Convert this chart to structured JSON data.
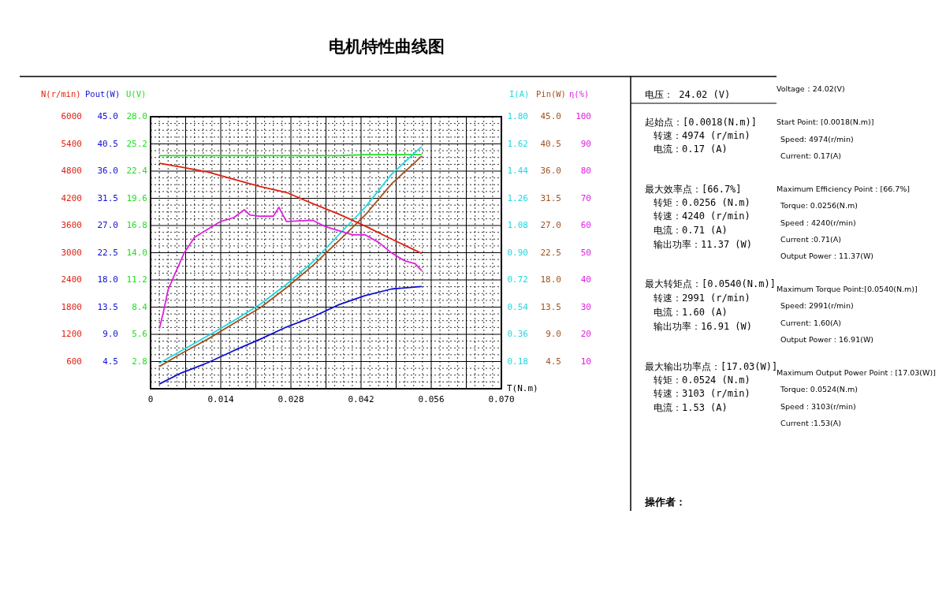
{
  "chart_data": [
    {
      "type": "line",
      "title": "电机特性曲线图",
      "xlabel": "T(N.m)",
      "ylabel": "U(V)",
      "y2label": "I(A)",
      "x": [
        0.0018,
        0.0061,
        0.0114,
        0.0166,
        0.0219,
        0.0271,
        0.0324,
        0.0376,
        0.0428,
        0.0481,
        0.054
      ],
      "series": [
        {
          "color": "#20e020",
          "values": [
            24.0,
            24.0,
            24.0,
            24.0,
            24.0,
            24.0,
            24.0,
            24.0,
            24.1,
            24.1,
            24.1
          ]
        },
        {
          "color": "#20d8e0",
          "axis": "y2",
          "values": [
            0.17,
            0.25,
            0.35,
            0.45,
            0.56,
            0.69,
            0.84,
            1.02,
            1.2,
            1.42,
            1.6
          ]
        }
      ],
      "xlim": [
        0,
        0.07
      ],
      "xticks": [
        0,
        {
          "value": 0.007,
          "label": null
        },
        0.014,
        {
          "value": 0.021,
          "label": null
        },
        0.028,
        {
          "value": 0.035,
          "label": null
        },
        0.042,
        {
          "value": 0.049,
          "label": null
        },
        0.056,
        {
          "value": 0.063,
          "label": null
        },
        {
          "value": 0.07,
          "label": "0.070"
        }
      ],
      "ylim": [
        0,
        28
      ],
      "yticks": [
        2.8,
        5.6,
        8.4,
        11.2,
        {
          "value": 14,
          "label": "14.0"
        },
        16.8,
        19.6,
        22.4,
        25.2,
        {
          "value": 28,
          "label": "28.0"
        }
      ],
      "y2lim": [
        0,
        1.8
      ],
      "y2ticks": [
        0.18,
        0.36,
        0.54,
        0.72,
        {
          "value": 0.9,
          "label": "0.90"
        },
        1.08,
        1.26,
        1.44,
        1.62,
        {
          "value": 1.8,
          "label": "1.80"
        }
      ],
      "grid": true,
      "annotations": [
        "电压：  24.02 (V)",
        "Voltage：24.02(V)",
        "起始点：[0.0018(N.m)]",
        "Start Point: [0.0018(N.m)]",
        "转速：4974 (r/min)",
        "Speed: 4974(r/min)",
        "电流：0.17 (A)",
        "Current: 0.17(A)",
        "最大效率点：[66.7%]",
        "Maximum Efficiency Point : [66.7%]",
        "转矩：0.0256 (N.m)",
        "Torque: 0.0256(N.m)",
        "转速：4240 (r/min)",
        "Speed : 4240(r/min)",
        "电流：0.71 (A)",
        "Current :0.71(A)",
        "输出功率：11.37 (W)",
        "Output Power : 11.37(W)",
        "最大转矩点：[0.0540(N.m)]",
        "Maximum Torque Point:[0.0540(N.m)]",
        "转速：2991 (r/min)",
        "Speed: 2991(r/min)",
        "电流：1.60 (A)",
        "Current: 1.60(A)",
        "输出功率：16.91 (W)",
        "Output Power : 16.91(W)",
        "最大输出功率点：[17.03(W)]",
        "Maximum Output Power Point : [17.03(W)]",
        "转矩：0.0524 (N.m)",
        "Torque: 0.0524(N.m)",
        "转速：3103 (r/min)",
        "Speed : 3103(r/min)",
        "电流：1.53 (A)",
        "Current :1.53(A)",
        "操作者："
      ]
    },
    {
      "type": "line",
      "ylabel": "Pout(W)",
      "y2label": "Pin(W)",
      "x": [
        0.0018,
        0.0061,
        0.0114,
        0.0166,
        0.0219,
        0.0271,
        0.0324,
        0.0376,
        0.0428,
        0.0481,
        0.054
      ],
      "series": [
        {
          "color": "#1010d0",
          "values": [
            0.8,
            2.6,
            4.3,
            6.3,
            8.2,
            10.2,
            11.9,
            13.9,
            15.4,
            16.5,
            16.9
          ]
        },
        {
          "color": "#a0521e",
          "axis": "y2",
          "values": [
            3.7,
            5.8,
            8.2,
            10.8,
            13.4,
            16.7,
            20.4,
            24.5,
            28.7,
            33.9,
            38.4
          ]
        }
      ],
      "xlim": [
        0,
        0.07
      ],
      "ylim": [
        0,
        45
      ],
      "yticks": [
        {
          "value": 4.5,
          "label": "4.5"
        },
        {
          "value": 9,
          "label": "9.0"
        },
        {
          "value": 13.5,
          "label": "13.5"
        },
        {
          "value": 18,
          "label": "18.0"
        },
        {
          "value": 22.5,
          "label": "22.5"
        },
        {
          "value": 27,
          "label": "27.0"
        },
        {
          "value": 31.5,
          "label": "31.5"
        },
        {
          "value": 36,
          "label": "36.0"
        },
        {
          "value": 40.5,
          "label": "40.5"
        },
        {
          "value": 45,
          "label": "45.0"
        }
      ],
      "y2lim": [
        0,
        45
      ],
      "y2ticks": [
        {
          "value": 4.5,
          "label": "4.5"
        },
        {
          "value": 9,
          "label": "9.0"
        },
        {
          "value": 13.5,
          "label": "13.5"
        },
        {
          "value": 18,
          "label": "18.0"
        },
        {
          "value": 22.5,
          "label": "22.5"
        },
        {
          "value": 27,
          "label": "27.0"
        },
        {
          "value": 31.5,
          "label": "31.5"
        },
        {
          "value": 36,
          "label": "36.0"
        },
        {
          "value": 40.5,
          "label": "40.5"
        },
        {
          "value": 45,
          "label": "45.0"
        }
      ],
      "tick_labels": "y"
    },
    {
      "type": "line",
      "ylabel": "N(r/min)",
      "y2label": "η(%)",
      "x": [
        0.0018,
        0.0061,
        0.0114,
        0.0166,
        0.0219,
        0.0271,
        0.0324,
        0.0376,
        0.0428,
        0.0481,
        0.054
      ],
      "series": [
        {
          "color": "#e02010",
          "values": [
            4970,
            4890,
            4780,
            4620,
            4460,
            4330,
            4080,
            3850,
            3590,
            3300,
            2990
          ]
        },
        {
          "color": "#e020e0",
          "axis": "y2",
          "x": [
            0.0018,
            0.0025,
            0.0035,
            0.0051,
            0.0067,
            0.0088,
            0.0114,
            0.014,
            0.0166,
            0.0187,
            0.0198,
            0.0219,
            0.0245,
            0.0256,
            0.0271,
            0.0324,
            0.035,
            0.0376,
            0.0402,
            0.0428,
            0.0455,
            0.0481,
            0.0507,
            0.0528,
            0.054
          ],
          "values": [
            22.4,
            27.7,
            36.4,
            43.2,
            49.9,
            55.7,
            58.6,
            61.5,
            62.9,
            65.8,
            63.9,
            63.4,
            63.4,
            66.7,
            61.5,
            61.9,
            59.5,
            58.1,
            56.6,
            56.6,
            53.8,
            49.9,
            47.0,
            46.0,
            43.6
          ]
        }
      ],
      "xlim": [
        0,
        0.07
      ],
      "ylim": [
        0,
        6000
      ],
      "yticks": [
        600,
        1200,
        1800,
        2400,
        3000,
        3600,
        4200,
        4800,
        5400,
        6000
      ],
      "y2lim": [
        0,
        100
      ],
      "y2ticks": [
        10,
        20,
        30,
        40,
        50,
        60,
        70,
        80,
        90,
        100
      ],
      "tick_labels": "y"
    }
  ]
}
